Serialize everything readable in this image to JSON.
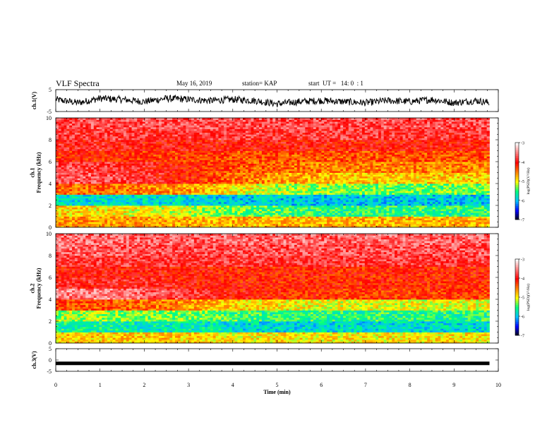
{
  "header": {
    "title": "VLF Spectra",
    "date": "May 16, 2019",
    "station": "station= KAP",
    "start": "start  UT =   14: 0  : 1"
  },
  "colors": {
    "trace": "#000000",
    "colormap": [
      "#000000",
      "#0000ff",
      "#00c0ff",
      "#00ff80",
      "#ffff00",
      "#ff8000",
      "#ff0000",
      "#ff8080",
      "#ffffff"
    ]
  },
  "chart_data": [
    {
      "type": "line",
      "panel": "ch1-waveform",
      "ylabel": "ch.1(V)",
      "ylim": [
        -5,
        5
      ],
      "yticks": [
        "5",
        "-5"
      ],
      "x": [
        0,
        0.5,
        1,
        1.5,
        2,
        2.5,
        3,
        3.5,
        4,
        4.5,
        5,
        5.5,
        6,
        6.5,
        7,
        7.5,
        8,
        8.5,
        9,
        9.5,
        9.8
      ],
      "values": [
        0.5,
        -1,
        1,
        0.5,
        -0.5,
        1,
        0.5,
        0,
        0.5,
        0,
        -1.5,
        -0.5,
        0,
        -0.5,
        -1,
        0,
        -0.5,
        0.5,
        -1,
        0,
        -1
      ],
      "xlim": [
        0,
        10
      ]
    },
    {
      "type": "heatmap",
      "panel": "ch1-spectrogram",
      "ylabel": "ch.1\nFrequency (kHz)",
      "yticks": [
        "0",
        "2",
        "4",
        "6",
        "8",
        "10"
      ],
      "ylim": [
        0,
        10
      ],
      "xlim": [
        0,
        10
      ],
      "colorbar": {
        "label": "log(PSD)(V²/Hz)",
        "ticks": [
          "-3",
          "-4",
          "-5",
          "-6",
          "-7"
        ],
        "range": [
          -7,
          -3
        ]
      },
      "x": [
        0,
        1,
        2,
        3,
        4,
        5,
        6,
        7,
        8,
        9,
        9.8
      ],
      "freq_bands": [
        0,
        1,
        2,
        3,
        4,
        5,
        6,
        7,
        8,
        9,
        10
      ],
      "values": [
        [
          -4.6,
          -4.6,
          -4.6,
          -4.7,
          -4.7,
          -4.7,
          -4.7,
          -4.7,
          -4.7,
          -4.7,
          -4.7
        ],
        [
          -4.8,
          -4.9,
          -5.0,
          -5.1,
          -5.3,
          -5.4,
          -5.5,
          -5.5,
          -5.5,
          -5.5,
          -5.5
        ],
        [
          -5.8,
          -5.8,
          -5.8,
          -5.8,
          -5.9,
          -5.9,
          -5.9,
          -5.9,
          -5.9,
          -5.9,
          -5.9
        ],
        [
          -4.4,
          -4.4,
          -4.5,
          -4.6,
          -4.9,
          -5.1,
          -5.2,
          -5.3,
          -5.3,
          -5.3,
          -5.3
        ],
        [
          -3.6,
          -3.7,
          -3.8,
          -4.1,
          -4.4,
          -4.6,
          -4.7,
          -4.8,
          -4.8,
          -4.8,
          -4.8
        ],
        [
          -3.7,
          -3.8,
          -3.9,
          -4.1,
          -4.3,
          -4.4,
          -4.5,
          -4.5,
          -4.5,
          -4.5,
          -4.5
        ],
        [
          -4.1,
          -4.1,
          -4.2,
          -4.2,
          -4.3,
          -4.3,
          -4.3,
          -4.3,
          -4.3,
          -4.3,
          -4.3
        ],
        [
          -3.9,
          -3.9,
          -4.0,
          -4.0,
          -4.0,
          -4.0,
          -4.0,
          -4.0,
          -4.0,
          -4.0,
          -4.0
        ],
        [
          -3.8,
          -3.8,
          -3.8,
          -3.8,
          -3.8,
          -3.8,
          -3.8,
          -3.8,
          -3.8,
          -3.8,
          -3.8
        ],
        [
          -3.7,
          -3.7,
          -3.7,
          -3.7,
          -3.7,
          -3.7,
          -3.7,
          -3.7,
          -3.7,
          -3.7,
          -3.7
        ]
      ]
    },
    {
      "type": "heatmap",
      "panel": "ch2-spectrogram",
      "ylabel": "ch.2\nFrequency (kHz)",
      "yticks": [
        "0",
        "2",
        "4",
        "6",
        "8",
        "10"
      ],
      "ylim": [
        0,
        10
      ],
      "xlim": [
        0,
        10
      ],
      "colorbar": {
        "label": "log(PSD)(V²/Hz)",
        "ticks": [
          "-3",
          "-4",
          "-5",
          "-6",
          "-7"
        ],
        "range": [
          -7,
          -3
        ]
      },
      "x": [
        0,
        1,
        2,
        3,
        4,
        5,
        6,
        7,
        8,
        9,
        9.8
      ],
      "freq_bands": [
        0,
        1,
        2,
        3,
        4,
        5,
        6,
        7,
        8,
        9,
        10
      ],
      "values": [
        [
          -4.8,
          -4.8,
          -4.8,
          -4.8,
          -4.9,
          -4.9,
          -4.9,
          -4.9,
          -4.9,
          -4.9,
          -4.9
        ],
        [
          -5.6,
          -5.6,
          -5.7,
          -5.7,
          -5.8,
          -5.8,
          -5.8,
          -5.8,
          -5.8,
          -5.8,
          -5.8
        ],
        [
          -5.2,
          -5.2,
          -5.3,
          -5.3,
          -5.4,
          -5.5,
          -5.5,
          -5.5,
          -5.5,
          -5.5,
          -5.5
        ],
        [
          -4.3,
          -4.3,
          -4.4,
          -4.6,
          -4.8,
          -4.9,
          -5.0,
          -5.0,
          -5.0,
          -5.0,
          -5.0
        ],
        [
          -3.5,
          -3.5,
          -3.6,
          -3.8,
          -4.0,
          -4.1,
          -4.2,
          -4.2,
          -4.2,
          -4.2,
          -4.2
        ],
        [
          -3.9,
          -3.9,
          -3.9,
          -4.0,
          -4.1,
          -4.1,
          -4.1,
          -4.1,
          -4.1,
          -4.1,
          -4.1
        ],
        [
          -4.0,
          -4.0,
          -4.0,
          -4.0,
          -4.1,
          -4.1,
          -4.1,
          -4.1,
          -4.1,
          -4.1,
          -4.1
        ],
        [
          -3.8,
          -3.8,
          -3.8,
          -3.8,
          -3.8,
          -3.8,
          -3.8,
          -3.8,
          -3.8,
          -3.8,
          -3.8
        ],
        [
          -3.6,
          -3.6,
          -3.7,
          -3.7,
          -3.7,
          -3.7,
          -3.7,
          -3.7,
          -3.7,
          -3.7,
          -3.7
        ],
        [
          -3.6,
          -3.6,
          -3.6,
          -3.6,
          -3.6,
          -3.6,
          -3.6,
          -3.6,
          -3.6,
          -3.6,
          -3.6
        ]
      ]
    },
    {
      "type": "line",
      "panel": "ch3-waveform",
      "ylabel": "ch.3(V)",
      "ylim": [
        -5,
        5
      ],
      "yticks": [
        "5",
        "0",
        "-5"
      ],
      "x": [
        0,
        9.8
      ],
      "values": [
        -1.5,
        -1.5
      ],
      "xlim": [
        0,
        10
      ],
      "xlabel": "Time (min)",
      "xticks": [
        "0",
        "1",
        "2",
        "3",
        "4",
        "5",
        "6",
        "7",
        "8",
        "9",
        "10"
      ]
    }
  ]
}
